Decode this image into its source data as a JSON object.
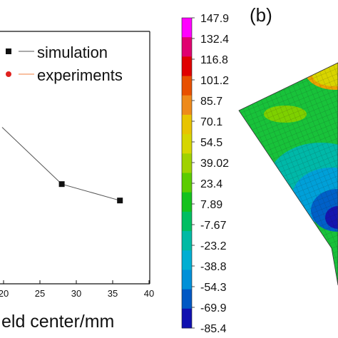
{
  "left_panel": {
    "chart_data": {
      "type": "line",
      "xlabel": "eld center/mm",
      "x_ticks": [
        "20",
        "25",
        "30",
        "35",
        "40"
      ],
      "xlim": [
        20,
        40
      ],
      "legend_position": "top-right",
      "series": [
        {
          "name": "simulation",
          "marker": "square",
          "color": "#111111",
          "points": [
            {
              "x": 19.8,
              "y": 0.62
            },
            {
              "x": 28,
              "y": 0.395
            },
            {
              "x": 36,
              "y": 0.33
            }
          ]
        },
        {
          "name": "experiments",
          "marker": "circle",
          "color": "#e0221f",
          "line_color": "#f08040",
          "points": []
        }
      ]
    }
  },
  "right_panel": {
    "panel_label": "(b)",
    "colorbar": {
      "values": [
        "147.9",
        "132.4",
        "116.8",
        "101.2",
        "85.7",
        "70.1",
        "54.5",
        "39.02",
        "23.4",
        "7.89",
        "-7.67",
        "-23.2",
        "-38.8",
        "-54.3",
        "-69.9",
        "-85.4"
      ],
      "colors": [
        "#ff00ff",
        "#e00070",
        "#e00000",
        "#e85000",
        "#ee8a1a",
        "#e8c400",
        "#d6d600",
        "#a0d200",
        "#5ccc00",
        "#14c21e",
        "#00be62",
        "#00baa4",
        "#00aed2",
        "#0090d8",
        "#0058c4",
        "#1010b0"
      ]
    }
  }
}
